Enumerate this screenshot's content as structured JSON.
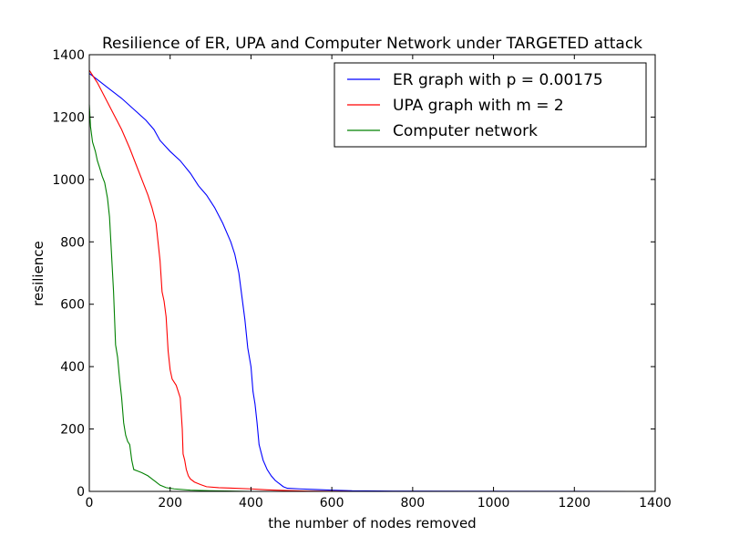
{
  "chart_data": {
    "type": "line",
    "title": "Resilience of ER, UPA and Computer Network under TARGETED attack",
    "xlabel": "the number of nodes removed",
    "ylabel": "resilience",
    "xlim": [
      0,
      1400
    ],
    "ylim": [
      0,
      1400
    ],
    "xticks": [
      0,
      200,
      400,
      600,
      800,
      1000,
      1200,
      1400
    ],
    "yticks": [
      0,
      200,
      400,
      600,
      800,
      1000,
      1200,
      1400
    ],
    "grid": false,
    "legend_position": "top-right",
    "series": [
      {
        "name": "ER graph with p = 0.00175",
        "color": "#0000ff",
        "points": [
          [
            0,
            1340
          ],
          [
            20,
            1320
          ],
          [
            50,
            1290
          ],
          [
            80,
            1260
          ],
          [
            110,
            1225
          ],
          [
            140,
            1190
          ],
          [
            160,
            1160
          ],
          [
            175,
            1125
          ],
          [
            200,
            1090
          ],
          [
            225,
            1060
          ],
          [
            250,
            1020
          ],
          [
            270,
            980
          ],
          [
            290,
            950
          ],
          [
            310,
            910
          ],
          [
            330,
            860
          ],
          [
            350,
            800
          ],
          [
            360,
            760
          ],
          [
            370,
            700
          ],
          [
            378,
            620
          ],
          [
            385,
            550
          ],
          [
            392,
            460
          ],
          [
            400,
            400
          ],
          [
            405,
            320
          ],
          [
            410,
            280
          ],
          [
            415,
            220
          ],
          [
            420,
            150
          ],
          [
            430,
            100
          ],
          [
            440,
            70
          ],
          [
            450,
            50
          ],
          [
            460,
            35
          ],
          [
            470,
            25
          ],
          [
            480,
            15
          ],
          [
            490,
            10
          ],
          [
            520,
            8
          ],
          [
            560,
            6
          ],
          [
            600,
            4
          ],
          [
            650,
            2
          ],
          [
            750,
            1
          ],
          [
            1340,
            0
          ]
        ]
      },
      {
        "name": "UPA graph with m = 2",
        "color": "#ff0000",
        "points": [
          [
            0,
            1350
          ],
          [
            20,
            1310
          ],
          [
            40,
            1260
          ],
          [
            60,
            1210
          ],
          [
            80,
            1160
          ],
          [
            100,
            1100
          ],
          [
            115,
            1050
          ],
          [
            130,
            1000
          ],
          [
            145,
            950
          ],
          [
            155,
            910
          ],
          [
            165,
            860
          ],
          [
            170,
            800
          ],
          [
            175,
            740
          ],
          [
            180,
            640
          ],
          [
            185,
            610
          ],
          [
            190,
            560
          ],
          [
            195,
            450
          ],
          [
            200,
            390
          ],
          [
            205,
            360
          ],
          [
            215,
            340
          ],
          [
            225,
            300
          ],
          [
            230,
            200
          ],
          [
            232,
            120
          ],
          [
            236,
            100
          ],
          [
            240,
            70
          ],
          [
            245,
            50
          ],
          [
            250,
            40
          ],
          [
            260,
            30
          ],
          [
            275,
            22
          ],
          [
            290,
            15
          ],
          [
            320,
            12
          ],
          [
            360,
            10
          ],
          [
            400,
            8
          ],
          [
            440,
            5
          ],
          [
            480,
            3
          ],
          [
            540,
            1
          ],
          [
            650,
            0
          ],
          [
            1340,
            0
          ]
        ]
      },
      {
        "name": "Computer network",
        "color": "#008000",
        "points": [
          [
            0,
            1240
          ],
          [
            3,
            1170
          ],
          [
            8,
            1120
          ],
          [
            15,
            1090
          ],
          [
            20,
            1060
          ],
          [
            25,
            1040
          ],
          [
            32,
            1010
          ],
          [
            38,
            990
          ],
          [
            45,
            940
          ],
          [
            50,
            880
          ],
          [
            55,
            760
          ],
          [
            60,
            640
          ],
          [
            65,
            470
          ],
          [
            70,
            430
          ],
          [
            75,
            360
          ],
          [
            80,
            300
          ],
          [
            85,
            220
          ],
          [
            90,
            180
          ],
          [
            95,
            160
          ],
          [
            100,
            150
          ],
          [
            105,
            100
          ],
          [
            110,
            70
          ],
          [
            120,
            65
          ],
          [
            130,
            60
          ],
          [
            145,
            50
          ],
          [
            155,
            40
          ],
          [
            165,
            30
          ],
          [
            175,
            20
          ],
          [
            190,
            12
          ],
          [
            210,
            8
          ],
          [
            250,
            4
          ],
          [
            300,
            2
          ],
          [
            400,
            0
          ],
          [
            1340,
            0
          ]
        ]
      }
    ]
  }
}
